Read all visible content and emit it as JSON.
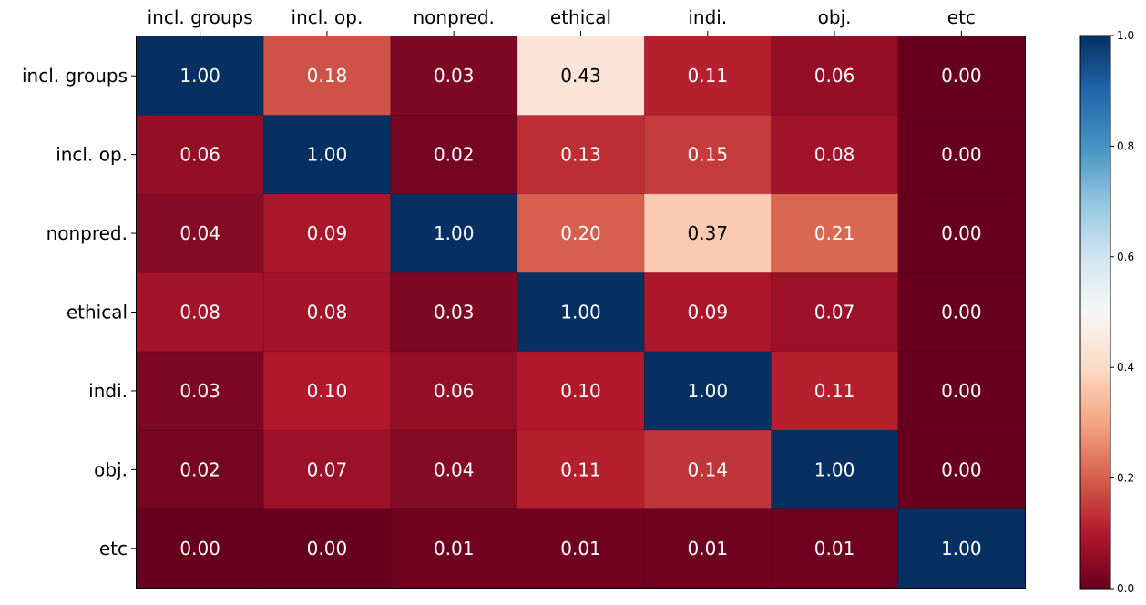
{
  "chart_data": {
    "type": "heatmap",
    "colormap": "RdBu",
    "x_categories": [
      "incl. groups",
      "incl. op.",
      "nonpred.",
      "ethical",
      "indi.",
      "obj.",
      "etc"
    ],
    "y_categories": [
      "incl. groups",
      "incl. op.",
      "nonpred.",
      "ethical",
      "indi.",
      "obj.",
      "etc"
    ],
    "values": [
      [
        1.0,
        0.18,
        0.03,
        0.43,
        0.11,
        0.06,
        0.0
      ],
      [
        0.06,
        1.0,
        0.02,
        0.13,
        0.15,
        0.08,
        0.0
      ],
      [
        0.04,
        0.09,
        1.0,
        0.2,
        0.37,
        0.21,
        0.0
      ],
      [
        0.08,
        0.08,
        0.03,
        1.0,
        0.09,
        0.07,
        0.0
      ],
      [
        0.03,
        0.1,
        0.06,
        0.1,
        1.0,
        0.11,
        0.0
      ],
      [
        0.02,
        0.07,
        0.04,
        0.11,
        0.14,
        1.0,
        0.0
      ],
      [
        0.0,
        0.0,
        0.01,
        0.01,
        0.01,
        0.01,
        1.0
      ]
    ],
    "value_labels": [
      [
        "1.00",
        "0.18",
        "0.03",
        "0.43",
        "0.11",
        "0.06",
        "0.00"
      ],
      [
        "0.06",
        "1.00",
        "0.02",
        "0.13",
        "0.15",
        "0.08",
        "0.00"
      ],
      [
        "0.04",
        "0.09",
        "1.00",
        "0.20",
        "0.37",
        "0.21",
        "0.00"
      ],
      [
        "0.08",
        "0.08",
        "0.03",
        "1.00",
        "0.09",
        "0.07",
        "0.00"
      ],
      [
        "0.03",
        "0.10",
        "0.06",
        "0.10",
        "1.00",
        "0.11",
        "0.00"
      ],
      [
        "0.02",
        "0.07",
        "0.04",
        "0.11",
        "0.14",
        "1.00",
        "0.00"
      ],
      [
        "0.00",
        "0.00",
        "0.01",
        "0.01",
        "0.01",
        "0.01",
        "1.00"
      ]
    ],
    "colorbar": {
      "range": [
        0.0,
        1.0
      ],
      "ticks": [
        0.0,
        0.2,
        0.4,
        0.6,
        0.8,
        1.0
      ],
      "tick_labels": [
        "0.0",
        "0.2",
        "0.4",
        "0.6",
        "0.8",
        "1.0"
      ]
    },
    "x_tick_position": "top",
    "title": "",
    "xlabel": "",
    "ylabel": ""
  }
}
